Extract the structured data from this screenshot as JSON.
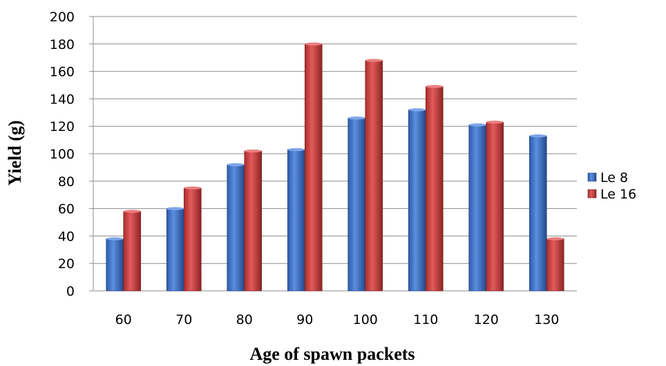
{
  "chart_data": {
    "type": "bar",
    "categories": [
      "60",
      "70",
      "80",
      "90",
      "100",
      "110",
      "120",
      "130"
    ],
    "series": [
      {
        "name": "Le 8",
        "color": "#3C6EC4",
        "values": [
          38,
          60,
          92,
          103,
          126,
          132,
          121,
          113
        ]
      },
      {
        "name": "Le 16",
        "color": "#C43C3C",
        "values": [
          58,
          75,
          102,
          180,
          168,
          149,
          123,
          38
        ]
      }
    ],
    "xlabel": "Age of spawn packets",
    "ylabel": "Yield (g)",
    "ylim": [
      0,
      200
    ],
    "yticks": [
      "0",
      "20",
      "40",
      "60",
      "80",
      "100",
      "120",
      "140",
      "160",
      "180",
      "200"
    ],
    "grid": true,
    "legend_position": "right"
  }
}
